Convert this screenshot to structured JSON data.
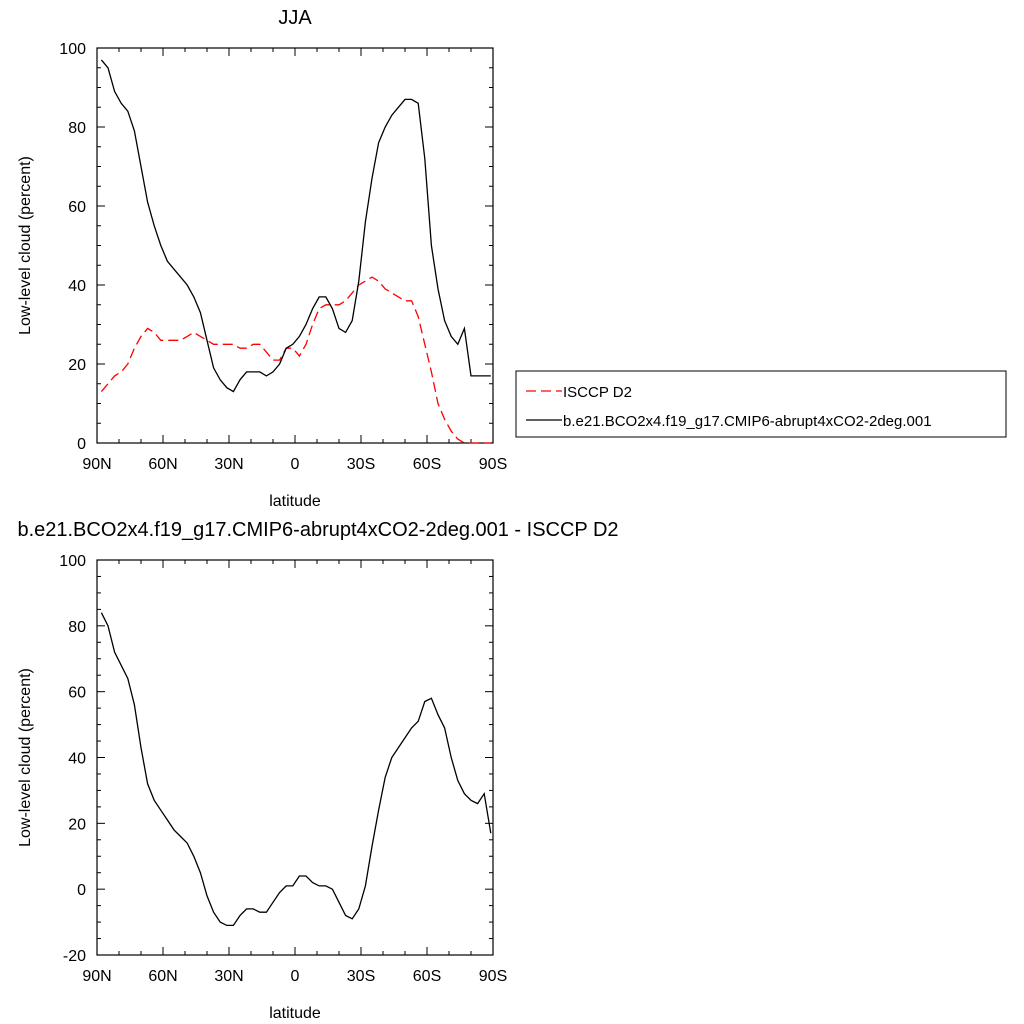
{
  "chart_data": [
    {
      "type": "line",
      "title": "JJA",
      "xlabel": "latitude",
      "ylabel": "Low-level cloud (percent)",
      "xlim": [
        90,
        -90
      ],
      "ylim": [
        0,
        100
      ],
      "xticks": [
        90,
        60,
        30,
        0,
        -30,
        -60,
        -90
      ],
      "xtick_labels": [
        "90N",
        "60N",
        "30N",
        "0",
        "30S",
        "60S",
        "90S"
      ],
      "yticks": [
        0,
        20,
        40,
        60,
        80,
        100
      ],
      "ytick_labels": [
        "0",
        "20",
        "40",
        "60",
        "80",
        "100"
      ],
      "legend_position": "right-middle",
      "series": [
        {
          "name": "ISCCP D2",
          "color": "#ff0000",
          "style": "dashed",
          "x": [
            88,
            85,
            82,
            79,
            76,
            73,
            70,
            67,
            64,
            61,
            58,
            55,
            52,
            49,
            46,
            43,
            40,
            37,
            34,
            31,
            28,
            25,
            22,
            19,
            16,
            13,
            10,
            7,
            4,
            1,
            -2,
            -5,
            -8,
            -11,
            -14,
            -17,
            -20,
            -23,
            -26,
            -29,
            -32,
            -35,
            -38,
            -41,
            -44,
            -47,
            -50,
            -53,
            -56,
            -59,
            -62,
            -65,
            -68,
            -71,
            -74,
            -77,
            -80,
            -83,
            -86,
            -89
          ],
          "y": [
            13,
            15,
            17,
            18,
            20,
            24,
            27,
            29,
            28,
            26,
            26,
            26,
            26,
            27,
            28,
            27,
            26,
            25,
            25,
            25,
            25,
            24,
            24,
            25,
            25,
            23,
            21,
            21,
            24,
            24,
            22,
            25,
            30,
            34,
            35,
            35,
            35,
            36,
            38,
            40,
            41,
            42,
            41,
            39,
            38,
            37,
            36,
            36,
            32,
            25,
            18,
            10,
            6,
            3,
            1,
            0,
            0,
            0,
            0,
            0
          ]
        },
        {
          "name": "b.e21.BCO2x4.f19_g17.CMIP6-abrupt4xCO2-2deg.001",
          "color": "#000000",
          "style": "solid",
          "x": [
            88,
            85,
            82,
            79,
            76,
            73,
            70,
            67,
            64,
            61,
            58,
            55,
            52,
            49,
            46,
            43,
            40,
            37,
            34,
            31,
            28,
            25,
            22,
            19,
            16,
            13,
            10,
            7,
            4,
            1,
            -2,
            -5,
            -8,
            -11,
            -14,
            -17,
            -20,
            -23,
            -26,
            -29,
            -32,
            -35,
            -38,
            -41,
            -44,
            -47,
            -50,
            -53,
            -56,
            -59,
            -62,
            -65,
            -68,
            -71,
            -74,
            -77,
            -80,
            -83,
            -86,
            -89
          ],
          "y": [
            97,
            95,
            89,
            86,
            84,
            79,
            70,
            61,
            55,
            50,
            46,
            44,
            42,
            40,
            37,
            33,
            26,
            19,
            16,
            14,
            13,
            16,
            18,
            18,
            18,
            17,
            18,
            20,
            24,
            25,
            27,
            30,
            34,
            37,
            37,
            34,
            29,
            28,
            31,
            41,
            56,
            67,
            76,
            80,
            83,
            85,
            87,
            87,
            86,
            72,
            50,
            39,
            31,
            27,
            25,
            29,
            17,
            17,
            17,
            17
          ]
        }
      ]
    },
    {
      "type": "line",
      "title": "b.e21.BCO2x4.f19_g17.CMIP6-abrupt4xCO2-2deg.001 - ISCCP D2",
      "xlabel": "latitude",
      "ylabel": "Low-level cloud (percent)",
      "xlim": [
        90,
        -90
      ],
      "ylim": [
        -20,
        100
      ],
      "xticks": [
        90,
        60,
        30,
        0,
        -30,
        -60,
        -90
      ],
      "xtick_labels": [
        "90N",
        "60N",
        "30N",
        "0",
        "30S",
        "60S",
        "90S"
      ],
      "yticks": [
        -20,
        0,
        20,
        40,
        60,
        80,
        100
      ],
      "ytick_labels": [
        "-20",
        "0",
        "20",
        "40",
        "60",
        "80",
        "100"
      ],
      "series": [
        {
          "color": "#000000",
          "style": "solid",
          "x": [
            88,
            85,
            82,
            79,
            76,
            73,
            70,
            67,
            64,
            61,
            58,
            55,
            52,
            49,
            46,
            43,
            40,
            37,
            34,
            31,
            28,
            25,
            22,
            19,
            16,
            13,
            10,
            7,
            4,
            1,
            -2,
            -5,
            -8,
            -11,
            -14,
            -17,
            -20,
            -23,
            -26,
            -29,
            -32,
            -35,
            -38,
            -41,
            -44,
            -47,
            -50,
            -53,
            -56,
            -59,
            -62,
            -65,
            -68,
            -71,
            -74,
            -77,
            -80,
            -83,
            -86,
            -89
          ],
          "y": [
            84,
            80,
            72,
            68,
            64,
            56,
            43,
            32,
            27,
            24,
            21,
            18,
            16,
            14,
            10,
            5,
            -2,
            -7,
            -10,
            -11,
            -11,
            -8,
            -6,
            -6,
            -7,
            -7,
            -4,
            -1,
            1,
            1,
            4,
            4,
            2,
            1,
            1,
            0,
            -4,
            -8,
            -9,
            -6,
            1,
            13,
            24,
            34,
            40,
            43,
            46,
            49,
            51,
            57,
            58,
            53,
            49,
            40,
            33,
            29,
            27,
            26,
            29,
            17
          ]
        }
      ]
    }
  ]
}
